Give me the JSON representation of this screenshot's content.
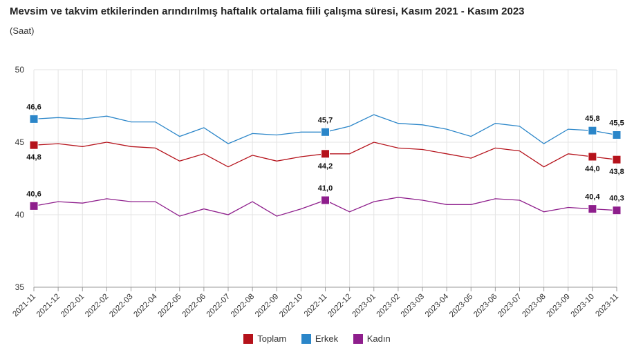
{
  "chart_data": {
    "type": "line",
    "title": "Mevsim ve takvim etkilerinden arındırılmış haftalık ortalama fiili çalışma süresi, Kasım 2021 - Kasım 2023",
    "subtitle": "(Saat)",
    "xlabel": "",
    "ylabel": "",
    "ylim": [
      35,
      50
    ],
    "yticks": [
      "35",
      "40",
      "45",
      "50"
    ],
    "grid": true,
    "legend_position": "bottom",
    "x": [
      "2021-11",
      "2021-12",
      "2022-01",
      "2022-02",
      "2022-03",
      "2022-04",
      "2022-05",
      "2022-06",
      "2022-07",
      "2022-08",
      "2022-09",
      "2022-10",
      "2022-11",
      "2022-12",
      "2023-01",
      "2023-02",
      "2023-03",
      "2023-04",
      "2023-05",
      "2023-06",
      "2023-07",
      "2023-08",
      "2023-09",
      "2023-10",
      "2023-11"
    ],
    "series": [
      {
        "name": "Toplam",
        "color": "#b5121b",
        "values": [
          44.8,
          44.9,
          44.7,
          45.0,
          44.7,
          44.6,
          43.7,
          44.2,
          43.3,
          44.1,
          43.7,
          44.0,
          44.2,
          44.2,
          45.0,
          44.6,
          44.5,
          44.2,
          43.9,
          44.6,
          44.4,
          43.3,
          44.2,
          44.0,
          43.8
        ],
        "labels": [
          {
            "index": 0,
            "text": "44,8",
            "pos": "below"
          },
          {
            "index": 12,
            "text": "44,2",
            "pos": "below"
          },
          {
            "index": 23,
            "text": "44,0",
            "pos": "below"
          },
          {
            "index": 24,
            "text": "43,8",
            "pos": "below"
          }
        ]
      },
      {
        "name": "Erkek",
        "color": "#2b86c9",
        "values": [
          46.6,
          46.7,
          46.6,
          46.8,
          46.4,
          46.4,
          45.4,
          46.0,
          44.9,
          45.6,
          45.5,
          45.7,
          45.7,
          46.1,
          46.9,
          46.3,
          46.2,
          45.9,
          45.4,
          46.3,
          46.1,
          44.9,
          45.9,
          45.8,
          45.5
        ],
        "labels": [
          {
            "index": 0,
            "text": "46,6",
            "pos": "above"
          },
          {
            "index": 12,
            "text": "45,7",
            "pos": "above"
          },
          {
            "index": 23,
            "text": "45,8",
            "pos": "above"
          },
          {
            "index": 24,
            "text": "45,5",
            "pos": "above"
          }
        ]
      },
      {
        "name": "Kadın",
        "color": "#8e1e8c",
        "values": [
          40.6,
          40.9,
          40.8,
          41.1,
          40.9,
          40.9,
          39.9,
          40.4,
          40.0,
          40.9,
          39.9,
          40.4,
          41.0,
          40.2,
          40.9,
          41.2,
          41.0,
          40.7,
          40.7,
          41.1,
          41.0,
          40.2,
          40.5,
          40.4,
          40.3
        ],
        "labels": [
          {
            "index": 0,
            "text": "40,6",
            "pos": "above"
          },
          {
            "index": 12,
            "text": "41,0",
            "pos": "above"
          },
          {
            "index": 23,
            "text": "40,4",
            "pos": "above"
          },
          {
            "index": 24,
            "text": "40,3",
            "pos": "above"
          }
        ]
      }
    ]
  }
}
